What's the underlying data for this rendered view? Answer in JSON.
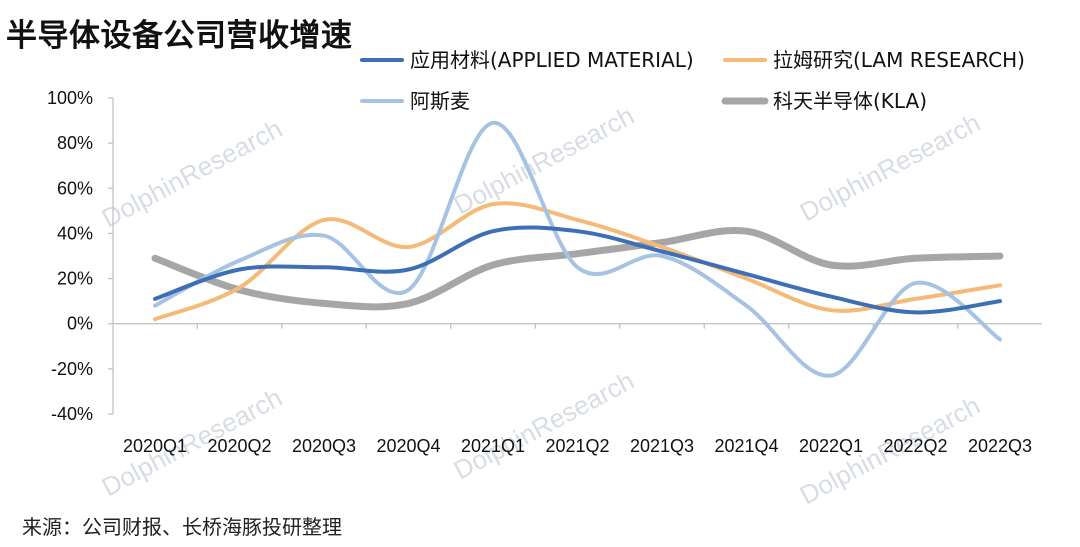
{
  "title": "半导体设备公司营收增速",
  "source": "来源：公司财报、长桥海豚投研整理",
  "watermark": "DolphinResearch",
  "chart_data": {
    "type": "line",
    "categories": [
      "2020Q1",
      "2020Q2",
      "2020Q3",
      "2020Q4",
      "2021Q1",
      "2021Q2",
      "2021Q3",
      "2021Q4",
      "2022Q1",
      "2022Q2",
      "2022Q3"
    ],
    "ylim": [
      -40,
      100
    ],
    "yticks": [
      "100%",
      "80%",
      "60%",
      "40%",
      "20%",
      "0%",
      "-20%",
      "-40%"
    ],
    "ytick_values": [
      100,
      80,
      60,
      40,
      20,
      0,
      -20,
      -40
    ],
    "series": [
      {
        "name": "应用材料(APPLIED MATERIAL)",
        "color": "#3d6fb6",
        "values": [
          11,
          24,
          25,
          24,
          41,
          41,
          32,
          22,
          12,
          5,
          10
        ]
      },
      {
        "name": "拉姆研究(LAM RESEARCH)",
        "color": "#f5b978",
        "values": [
          2,
          16,
          46,
          34,
          53,
          46,
          34,
          20,
          6,
          11,
          17
        ]
      },
      {
        "name": "阿斯麦",
        "color": "#a7c3e3",
        "values": [
          8,
          28,
          39,
          15,
          89,
          25,
          30,
          8,
          -23,
          18,
          -7
        ]
      },
      {
        "name": "科天半导体(KLA)",
        "color": "#a6a6a6",
        "values": [
          29,
          15,
          9,
          9,
          26,
          31,
          36,
          41,
          26,
          29,
          30
        ]
      }
    ],
    "legend": "top-right",
    "grid": false
  }
}
